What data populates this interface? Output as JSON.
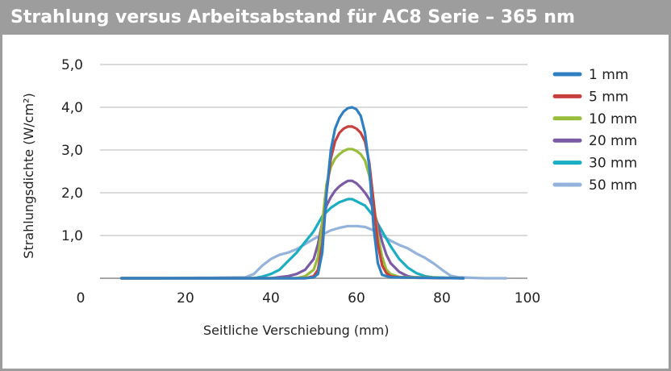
{
  "chart_data": {
    "type": "line",
    "title": "Strahlung versus Arbeitsabstand für AC8 Serie – 365 nm",
    "xlabel": "Seitliche Verschiebung (mm)",
    "ylabel": "Strahlungsdichte (W/cm²)",
    "xlim": [
      0,
      100
    ],
    "ylim": [
      0,
      5
    ],
    "x_ticks": [
      0,
      20,
      40,
      60,
      80,
      100
    ],
    "x_tick_labels": [
      "0",
      "20",
      "40",
      "60",
      "80",
      "100"
    ],
    "y_ticks": [
      1,
      2,
      3,
      4,
      5
    ],
    "y_tick_labels": [
      "1,0",
      "2,0",
      "3,0",
      "4,0",
      "5,0"
    ],
    "grid": "horizontal",
    "legend_position": "right",
    "series": [
      {
        "name": "1 mm",
        "color": "#2f7fc1",
        "x": [
          5,
          48,
          50,
          51,
          52,
          53,
          54,
          55,
          56,
          57,
          58,
          59,
          60,
          61,
          62,
          63,
          64,
          65,
          66,
          68,
          85
        ],
        "y": [
          0,
          0,
          0.02,
          0.1,
          0.6,
          2.0,
          3.0,
          3.5,
          3.75,
          3.9,
          3.98,
          4.0,
          3.95,
          3.8,
          3.4,
          2.6,
          1.2,
          0.35,
          0.08,
          0.02,
          0
        ]
      },
      {
        "name": "5 mm",
        "color": "#c8403d",
        "x": [
          5,
          48,
          50,
          51,
          52,
          53,
          54,
          55,
          56,
          57,
          58,
          59,
          60,
          61,
          62,
          63,
          64,
          65,
          66,
          67,
          68,
          70,
          85
        ],
        "y": [
          0,
          0,
          0.05,
          0.2,
          0.8,
          2.0,
          2.8,
          3.2,
          3.4,
          3.5,
          3.55,
          3.55,
          3.5,
          3.4,
          3.2,
          2.7,
          1.8,
          0.8,
          0.3,
          0.12,
          0.05,
          0.02,
          0
        ]
      },
      {
        "name": "10 mm",
        "color": "#97bd3b",
        "x": [
          5,
          46,
          48,
          50,
          51,
          52,
          53,
          54,
          55,
          56,
          57,
          58,
          59,
          60,
          61,
          62,
          63,
          64,
          65,
          66,
          67,
          68,
          70,
          85
        ],
        "y": [
          0,
          0,
          0.05,
          0.2,
          0.5,
          1.3,
          2.2,
          2.6,
          2.8,
          2.9,
          2.98,
          3.02,
          3.02,
          2.98,
          2.9,
          2.75,
          2.4,
          1.8,
          1.0,
          0.5,
          0.2,
          0.1,
          0.03,
          0
        ]
      },
      {
        "name": "20 mm",
        "color": "#7b5aa6",
        "x": [
          5,
          40,
          44,
          46,
          48,
          50,
          51,
          52,
          53,
          54,
          55,
          56,
          57,
          58,
          59,
          60,
          61,
          62,
          63,
          64,
          65,
          66,
          67,
          68,
          70,
          72,
          74,
          85
        ],
        "y": [
          0,
          0,
          0.05,
          0.1,
          0.2,
          0.45,
          0.8,
          1.3,
          1.7,
          1.9,
          2.05,
          2.15,
          2.22,
          2.28,
          2.28,
          2.22,
          2.12,
          2.0,
          1.85,
          1.6,
          1.25,
          0.85,
          0.55,
          0.35,
          0.15,
          0.05,
          0.01,
          0
        ]
      },
      {
        "name": "30 mm",
        "color": "#1aaec2",
        "x": [
          5,
          36,
          38,
          40,
          42,
          44,
          46,
          48,
          50,
          52,
          54,
          56,
          58,
          59,
          60,
          62,
          64,
          66,
          68,
          70,
          72,
          74,
          76,
          78,
          85
        ],
        "y": [
          0,
          0,
          0.04,
          0.1,
          0.2,
          0.4,
          0.6,
          0.85,
          1.1,
          1.45,
          1.65,
          1.78,
          1.85,
          1.85,
          1.8,
          1.7,
          1.45,
          1.1,
          0.75,
          0.45,
          0.25,
          0.12,
          0.05,
          0.02,
          0
        ]
      },
      {
        "name": "50 mm",
        "color": "#93b3dd",
        "x": [
          5,
          14,
          34,
          36,
          38,
          40,
          42,
          44,
          46,
          48,
          50,
          52,
          54,
          56,
          58,
          60,
          62,
          64,
          66,
          68,
          70,
          72,
          74,
          76,
          78,
          80,
          82,
          84,
          90,
          95
        ],
        "y": [
          0,
          0,
          0.02,
          0.1,
          0.3,
          0.45,
          0.55,
          0.6,
          0.68,
          0.8,
          0.92,
          1.02,
          1.12,
          1.18,
          1.22,
          1.22,
          1.2,
          1.12,
          1.0,
          0.88,
          0.78,
          0.7,
          0.58,
          0.48,
          0.35,
          0.2,
          0.06,
          0.02,
          0,
          0
        ]
      }
    ]
  }
}
